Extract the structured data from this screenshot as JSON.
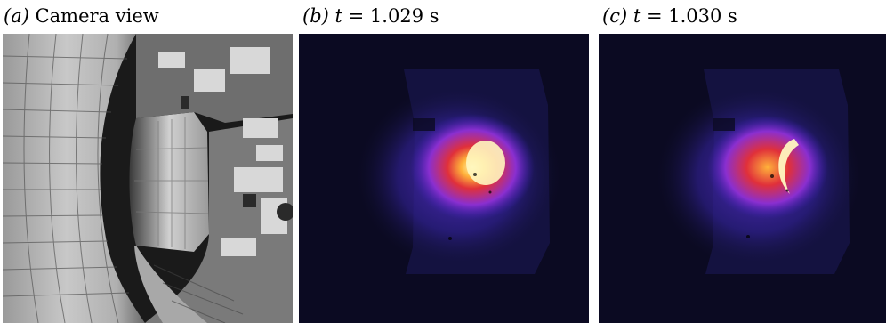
{
  "panels": [
    {
      "id": "a",
      "caption": {
        "letter": "(a)",
        "text": "Camera view"
      },
      "image": {
        "subject": "tokamak vessel interior rendering"
      }
    },
    {
      "id": "b",
      "caption": {
        "letter": "(b)",
        "var": "t",
        "eq": " = 1.029 s"
      },
      "image": {
        "subject": "camera frame with bright plasma emission",
        "colormap": [
          "#0b0a22",
          "#3a1fb0",
          "#8a2fd0",
          "#e0303a",
          "#ff8a2a",
          "#fff5b0"
        ]
      }
    },
    {
      "id": "c",
      "caption": {
        "letter": "(c)",
        "var": "t",
        "eq": " = 1.030 s"
      },
      "image": {
        "subject": "camera frame with bright plasma emission, crescent shape",
        "colormap": [
          "#0b0a22",
          "#3a1fb0",
          "#8a2fd0",
          "#e0303a",
          "#ff8a2a",
          "#fff5b0"
        ]
      }
    }
  ]
}
